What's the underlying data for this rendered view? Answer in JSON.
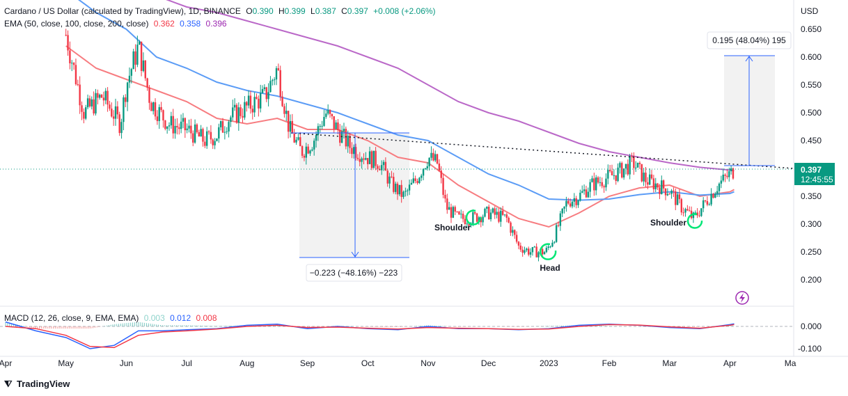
{
  "header": {
    "symbol": "Cardano / US Dollar (calculated by TradingView), 1D, BINANCE",
    "o_label": "O",
    "o": "0.390",
    "h_label": "H",
    "h": "0.399",
    "l_label": "L",
    "l": "0.387",
    "c_label": "C",
    "c": "0.397",
    "change": "+0.008 (+2.06%)",
    "ema_label": "EMA (50, close, 100, close, 200, close)",
    "ema50": "0.362",
    "ema100": "0.358",
    "ema200": "0.396",
    "macd_label": "MACD (12, 26, close, 9, EMA, EMA)",
    "macd_hist": "0.003",
    "macd_line": "0.012",
    "macd_signal": "0.008"
  },
  "price_axis": {
    "currency": "USD",
    "ticks": [
      "0.650",
      "0.600",
      "0.550",
      "0.500",
      "0.450",
      "0.400",
      "0.350",
      "0.300",
      "0.250",
      "0.200"
    ],
    "last_price": "0.397",
    "countdown": "12:45:55"
  },
  "macd_axis": {
    "ticks": [
      "0.000",
      "-0.100"
    ]
  },
  "time_axis": {
    "ticks": [
      "Apr",
      "May",
      "Jun",
      "Jul",
      "Aug",
      "Sep",
      "Oct",
      "Nov",
      "Dec",
      "2023",
      "Feb",
      "Mar",
      "Apr",
      "Ma"
    ]
  },
  "annotations": {
    "measure_down": "−0.223 (−48.16%) −223",
    "measure_up": "0.195 (48.04%) 195",
    "shoulder_left": "Shoulder",
    "head": "Head",
    "shoulder_right": "Shoulder"
  },
  "branding": {
    "logo": "TradingView"
  },
  "colors": {
    "up": "#089981",
    "down": "#f23645",
    "ema50": "#f77c80",
    "ema100": "#5b9cf6",
    "ema200": "#ba68c8",
    "accent": "#2962ff",
    "pattern": "#00e676"
  },
  "chart_data": {
    "type": "candlestick",
    "title": "Cardano / US Dollar (calculated by TradingView), 1D, BINANCE",
    "ylabel": "USD",
    "ylim": [
      0.17,
      0.68
    ],
    "x_range": [
      "Apr",
      "Ma"
    ],
    "grid": false,
    "close_path": [
      {
        "m": 1.0,
        "v": 0.64
      },
      {
        "m": 1.3,
        "v": 0.5
      },
      {
        "m": 1.6,
        "v": 0.53
      },
      {
        "m": 1.9,
        "v": 0.48
      },
      {
        "m": 2.0,
        "v": 0.55
      },
      {
        "m": 2.2,
        "v": 0.62
      },
      {
        "m": 2.4,
        "v": 0.52
      },
      {
        "m": 2.7,
        "v": 0.48
      },
      {
        "m": 3.0,
        "v": 0.47
      },
      {
        "m": 3.3,
        "v": 0.45
      },
      {
        "m": 3.5,
        "v": 0.46
      },
      {
        "m": 3.7,
        "v": 0.49
      },
      {
        "m": 4.0,
        "v": 0.51
      },
      {
        "m": 4.3,
        "v": 0.53
      },
      {
        "m": 4.5,
        "v": 0.58
      },
      {
        "m": 4.7,
        "v": 0.47
      },
      {
        "m": 4.9,
        "v": 0.43
      },
      {
        "m": 5.1,
        "v": 0.45
      },
      {
        "m": 5.3,
        "v": 0.5
      },
      {
        "m": 5.5,
        "v": 0.47
      },
      {
        "m": 5.7,
        "v": 0.44
      },
      {
        "m": 6.0,
        "v": 0.42
      },
      {
        "m": 6.2,
        "v": 0.41
      },
      {
        "m": 6.4,
        "v": 0.37
      },
      {
        "m": 6.6,
        "v": 0.35
      },
      {
        "m": 6.8,
        "v": 0.38
      },
      {
        "m": 7.0,
        "v": 0.42
      },
      {
        "m": 7.15,
        "v": 0.41
      },
      {
        "m": 7.3,
        "v": 0.33
      },
      {
        "m": 7.5,
        "v": 0.31
      },
      {
        "m": 7.7,
        "v": 0.31
      },
      {
        "m": 8.0,
        "v": 0.32
      },
      {
        "m": 8.3,
        "v": 0.31
      },
      {
        "m": 8.5,
        "v": 0.26
      },
      {
        "m": 8.7,
        "v": 0.25
      },
      {
        "m": 8.95,
        "v": 0.25
      },
      {
        "m": 9.1,
        "v": 0.28
      },
      {
        "m": 9.3,
        "v": 0.34
      },
      {
        "m": 9.5,
        "v": 0.35
      },
      {
        "m": 9.7,
        "v": 0.37
      },
      {
        "m": 9.9,
        "v": 0.38
      },
      {
        "m": 10.1,
        "v": 0.39
      },
      {
        "m": 10.4,
        "v": 0.41
      },
      {
        "m": 10.6,
        "v": 0.38
      },
      {
        "m": 10.8,
        "v": 0.37
      },
      {
        "m": 11.0,
        "v": 0.36
      },
      {
        "m": 11.2,
        "v": 0.33
      },
      {
        "m": 11.4,
        "v": 0.31
      },
      {
        "m": 11.6,
        "v": 0.34
      },
      {
        "m": 11.8,
        "v": 0.37
      },
      {
        "m": 11.9,
        "v": 0.38
      },
      {
        "m": 12.0,
        "v": 0.39
      },
      {
        "m": 12.07,
        "v": 0.397
      }
    ],
    "series": [
      {
        "name": "EMA 50",
        "last": 0.362,
        "values": [
          {
            "m": 1.0,
            "v": 0.62
          },
          {
            "m": 1.5,
            "v": 0.58
          },
          {
            "m": 2.0,
            "v": 0.56
          },
          {
            "m": 2.5,
            "v": 0.54
          },
          {
            "m": 3.0,
            "v": 0.52
          },
          {
            "m": 3.5,
            "v": 0.49
          },
          {
            "m": 4.0,
            "v": 0.48
          },
          {
            "m": 4.5,
            "v": 0.49
          },
          {
            "m": 5.0,
            "v": 0.47
          },
          {
            "m": 5.5,
            "v": 0.47
          },
          {
            "m": 6.0,
            "v": 0.45
          },
          {
            "m": 6.5,
            "v": 0.42
          },
          {
            "m": 7.0,
            "v": 0.41
          },
          {
            "m": 7.5,
            "v": 0.37
          },
          {
            "m": 8.0,
            "v": 0.34
          },
          {
            "m": 8.5,
            "v": 0.31
          },
          {
            "m": 9.0,
            "v": 0.295
          },
          {
            "m": 9.5,
            "v": 0.32
          },
          {
            "m": 10.0,
            "v": 0.35
          },
          {
            "m": 10.5,
            "v": 0.365
          },
          {
            "m": 11.0,
            "v": 0.37
          },
          {
            "m": 11.5,
            "v": 0.35
          },
          {
            "m": 12.0,
            "v": 0.358
          },
          {
            "m": 12.07,
            "v": 0.362
          }
        ]
      },
      {
        "name": "EMA 100",
        "last": 0.358,
        "values": [
          {
            "m": 1.0,
            "v": 0.72
          },
          {
            "m": 1.5,
            "v": 0.68
          },
          {
            "m": 2.0,
            "v": 0.65
          },
          {
            "m": 2.5,
            "v": 0.6
          },
          {
            "m": 3.0,
            "v": 0.58
          },
          {
            "m": 3.5,
            "v": 0.555
          },
          {
            "m": 4.0,
            "v": 0.54
          },
          {
            "m": 4.5,
            "v": 0.53
          },
          {
            "m": 5.0,
            "v": 0.515
          },
          {
            "m": 5.5,
            "v": 0.5
          },
          {
            "m": 6.0,
            "v": 0.48
          },
          {
            "m": 6.5,
            "v": 0.46
          },
          {
            "m": 7.0,
            "v": 0.45
          },
          {
            "m": 7.5,
            "v": 0.42
          },
          {
            "m": 8.0,
            "v": 0.39
          },
          {
            "m": 8.5,
            "v": 0.37
          },
          {
            "m": 9.0,
            "v": 0.345
          },
          {
            "m": 9.5,
            "v": 0.343
          },
          {
            "m": 10.0,
            "v": 0.345
          },
          {
            "m": 10.5,
            "v": 0.353
          },
          {
            "m": 11.0,
            "v": 0.358
          },
          {
            "m": 11.5,
            "v": 0.352
          },
          {
            "m": 12.0,
            "v": 0.355
          },
          {
            "m": 12.07,
            "v": 0.358
          }
        ]
      },
      {
        "name": "EMA 200",
        "last": 0.396,
        "values": [
          {
            "m": 1.0,
            "v": 0.78
          },
          {
            "m": 1.5,
            "v": 0.75
          },
          {
            "m": 2.0,
            "v": 0.73
          },
          {
            "m": 2.5,
            "v": 0.71
          },
          {
            "m": 3.0,
            "v": 0.69
          },
          {
            "m": 3.5,
            "v": 0.68
          },
          {
            "m": 4.0,
            "v": 0.665
          },
          {
            "m": 4.5,
            "v": 0.65
          },
          {
            "m": 5.0,
            "v": 0.635
          },
          {
            "m": 5.5,
            "v": 0.62
          },
          {
            "m": 6.0,
            "v": 0.6
          },
          {
            "m": 6.5,
            "v": 0.58
          },
          {
            "m": 7.0,
            "v": 0.55
          },
          {
            "m": 7.5,
            "v": 0.52
          },
          {
            "m": 8.0,
            "v": 0.5
          },
          {
            "m": 8.5,
            "v": 0.485
          },
          {
            "m": 9.0,
            "v": 0.465
          },
          {
            "m": 9.5,
            "v": 0.445
          },
          {
            "m": 10.0,
            "v": 0.43
          },
          {
            "m": 10.5,
            "v": 0.42
          },
          {
            "m": 11.0,
            "v": 0.41
          },
          {
            "m": 11.5,
            "v": 0.402
          },
          {
            "m": 12.0,
            "v": 0.397
          },
          {
            "m": 12.07,
            "v": 0.396
          }
        ]
      }
    ],
    "neckline": {
      "from": {
        "m": 5.0,
        "v": 0.463
      },
      "to": {
        "m": 13.0,
        "v": 0.4
      }
    },
    "measure_down": {
      "m_from": 5.0,
      "m_to": 6.8,
      "top": 0.463,
      "bottom": 0.24,
      "label": "−0.223 (−48.16%) −223"
    },
    "measure_up": {
      "m_from": 12.0,
      "m_to": 12.7,
      "top": 0.6,
      "bottom": 0.405,
      "label": "0.195 (48.04%) 195"
    },
    "pattern_points": [
      {
        "label": "Shoulder",
        "m": 7.75,
        "v": 0.305
      },
      {
        "label": "Head",
        "m": 8.95,
        "v": 0.245
      },
      {
        "label": "Shoulder",
        "m": 11.48,
        "v": 0.305
      }
    ],
    "macd": {
      "ylim": [
        -0.13,
        0.03
      ],
      "macd_line": [
        {
          "m": 0.0,
          "v": 0.02
        },
        {
          "m": 0.5,
          "v": -0.02
        },
        {
          "m": 1.0,
          "v": -0.05
        },
        {
          "m": 1.4,
          "v": -0.1
        },
        {
          "m": 1.8,
          "v": -0.085
        },
        {
          "m": 2.2,
          "v": -0.02
        },
        {
          "m": 2.6,
          "v": -0.02
        },
        {
          "m": 3.0,
          "v": -0.015
        },
        {
          "m": 3.5,
          "v": -0.01
        },
        {
          "m": 4.0,
          "v": 0.005
        },
        {
          "m": 4.5,
          "v": 0.01
        },
        {
          "m": 5.0,
          "v": -0.01
        },
        {
          "m": 5.5,
          "v": 0.0
        },
        {
          "m": 6.0,
          "v": -0.01
        },
        {
          "m": 6.5,
          "v": -0.015
        },
        {
          "m": 7.0,
          "v": 0.0
        },
        {
          "m": 7.5,
          "v": -0.01
        },
        {
          "m": 8.0,
          "v": -0.01
        },
        {
          "m": 8.5,
          "v": -0.015
        },
        {
          "m": 9.0,
          "v": -0.01
        },
        {
          "m": 9.5,
          "v": 0.005
        },
        {
          "m": 10.0,
          "v": 0.01
        },
        {
          "m": 10.5,
          "v": 0.005
        },
        {
          "m": 11.0,
          "v": -0.005
        },
        {
          "m": 11.5,
          "v": -0.01
        },
        {
          "m": 12.0,
          "v": 0.008
        },
        {
          "m": 12.07,
          "v": 0.012
        }
      ],
      "signal_line": [
        {
          "m": 0.0,
          "v": 0.0
        },
        {
          "m": 0.5,
          "v": -0.01
        },
        {
          "m": 1.0,
          "v": -0.04
        },
        {
          "m": 1.4,
          "v": -0.09
        },
        {
          "m": 1.8,
          "v": -0.095
        },
        {
          "m": 2.2,
          "v": -0.04
        },
        {
          "m": 2.6,
          "v": -0.025
        },
        {
          "m": 3.0,
          "v": -0.02
        },
        {
          "m": 3.5,
          "v": -0.012
        },
        {
          "m": 4.0,
          "v": 0.0
        },
        {
          "m": 4.5,
          "v": 0.005
        },
        {
          "m": 5.0,
          "v": -0.005
        },
        {
          "m": 5.5,
          "v": -0.003
        },
        {
          "m": 6.0,
          "v": -0.008
        },
        {
          "m": 6.5,
          "v": -0.012
        },
        {
          "m": 7.0,
          "v": -0.005
        },
        {
          "m": 7.5,
          "v": -0.008
        },
        {
          "m": 8.0,
          "v": -0.01
        },
        {
          "m": 8.5,
          "v": -0.013
        },
        {
          "m": 9.0,
          "v": -0.012
        },
        {
          "m": 9.5,
          "v": 0.0
        },
        {
          "m": 10.0,
          "v": 0.008
        },
        {
          "m": 10.5,
          "v": 0.006
        },
        {
          "m": 11.0,
          "v": -0.002
        },
        {
          "m": 11.5,
          "v": -0.008
        },
        {
          "m": 12.0,
          "v": 0.005
        },
        {
          "m": 12.07,
          "v": 0.008
        }
      ]
    }
  }
}
